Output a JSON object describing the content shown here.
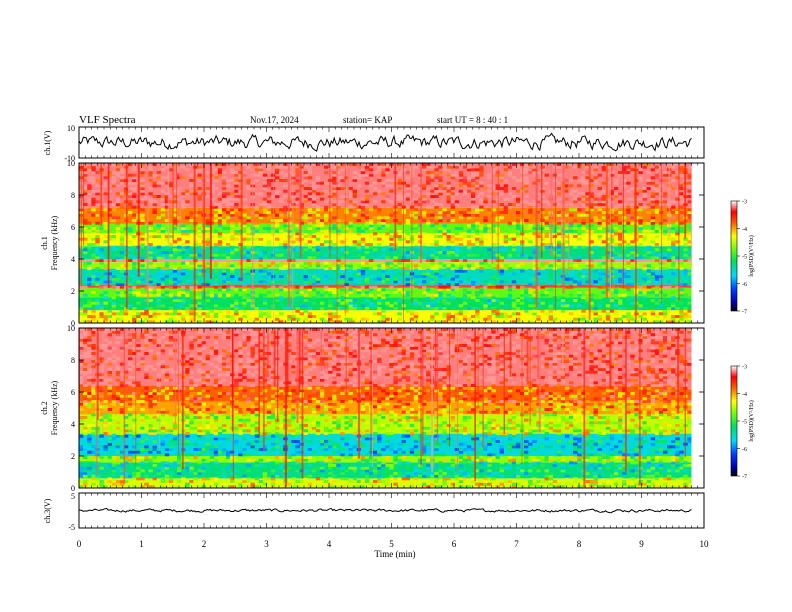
{
  "header": {
    "title": "VLF Spectra",
    "date": "Nov.17, 2024",
    "station": "station= KAP",
    "start": "start  UT  =   8  : 40 : 1"
  },
  "chart_data": [
    {
      "type": "line",
      "panel": "ch1-waveform",
      "ylabel": "ch.1(V)",
      "ylim": [
        -10,
        10
      ],
      "y_ticklabels": [
        "10",
        "-10"
      ],
      "xlim": [
        0,
        10
      ],
      "x_data_end": 9.8,
      "description_values": {
        "mean": 0,
        "amplitude": 4
      }
    },
    {
      "type": "heatmap",
      "panel": "ch1-spectrogram",
      "ylabel": "ch.1\nFrequency  (kHz)",
      "ylabel_lines": [
        "ch.1",
        "Frequency  (kHz)"
      ],
      "ylim": [
        0,
        10
      ],
      "y_ticklabels": [
        "0",
        "2",
        "4",
        "6",
        "8",
        "10"
      ],
      "xlim": [
        0,
        10
      ],
      "x_data_end": 9.8,
      "bands_khz": [
        {
          "f0": 0.0,
          "f1": 0.8,
          "level": -4.3
        },
        {
          "f0": 0.8,
          "f1": 1.6,
          "level": -5.2
        },
        {
          "f0": 1.6,
          "f1": 2.2,
          "level": -4.8
        },
        {
          "f0": 2.2,
          "f1": 2.4,
          "level": -3.3
        },
        {
          "f0": 2.4,
          "f1": 3.4,
          "level": -5.5
        },
        {
          "f0": 3.4,
          "f1": 3.8,
          "level": -4.6
        },
        {
          "f0": 3.8,
          "f1": 4.0,
          "level": -3.1
        },
        {
          "f0": 4.0,
          "f1": 4.8,
          "level": -5.3
        },
        {
          "f0": 4.8,
          "f1": 5.6,
          "level": -4.3
        },
        {
          "f0": 5.6,
          "f1": 6.2,
          "level": -4.8
        },
        {
          "f0": 6.2,
          "f1": 7.2,
          "level": -3.9
        },
        {
          "f0": 7.2,
          "f1": 10.0,
          "level": -3.2
        }
      ],
      "colorbar": {
        "label": "log(PSD)(V²/Hz)",
        "range": [
          -7,
          -3
        ],
        "ticklabels": [
          "-3",
          "-4",
          "-5",
          "-6",
          "-7"
        ]
      }
    },
    {
      "type": "heatmap",
      "panel": "ch2-spectrogram",
      "ylabel": "ch.2\nFrequency  (kHz)",
      "ylabel_lines": [
        "ch.2",
        "Frequency  (kHz)"
      ],
      "ylim": [
        0,
        10
      ],
      "y_ticklabels": [
        "0",
        "2",
        "4",
        "6",
        "8",
        "10"
      ],
      "xlim": [
        0,
        10
      ],
      "x_data_end": 9.8,
      "bands_khz": [
        {
          "f0": 0.0,
          "f1": 0.6,
          "level": -4.4
        },
        {
          "f0": 0.6,
          "f1": 1.6,
          "level": -5.3
        },
        {
          "f0": 1.6,
          "f1": 2.0,
          "level": -4.6
        },
        {
          "f0": 2.0,
          "f1": 3.4,
          "level": -5.6
        },
        {
          "f0": 3.4,
          "f1": 4.6,
          "level": -4.5
        },
        {
          "f0": 4.6,
          "f1": 5.4,
          "level": -4.0
        },
        {
          "f0": 5.4,
          "f1": 6.4,
          "level": -3.8
        },
        {
          "f0": 6.4,
          "f1": 10.0,
          "level": -3.2
        }
      ],
      "colorbar": {
        "label": "log(PSD)(V²/Hz)",
        "range": [
          -7,
          -3
        ],
        "ticklabels": [
          "-3",
          "-4",
          "-5",
          "-6",
          "-7"
        ]
      }
    },
    {
      "type": "line",
      "panel": "ch3-waveform",
      "ylabel": "ch.3(V)",
      "ylim": [
        -5,
        5
      ],
      "y_ticklabels": [
        "5",
        "-5"
      ],
      "xlim": [
        0,
        10
      ],
      "x_data_end": 9.8,
      "description_values": {
        "mean": 0,
        "amplitude": 0.4
      }
    }
  ],
  "xaxis": {
    "label": "Time  (min)",
    "ticklabels": [
      "0",
      "1",
      "2",
      "3",
      "4",
      "5",
      "6",
      "7",
      "8",
      "9",
      "10"
    ]
  }
}
